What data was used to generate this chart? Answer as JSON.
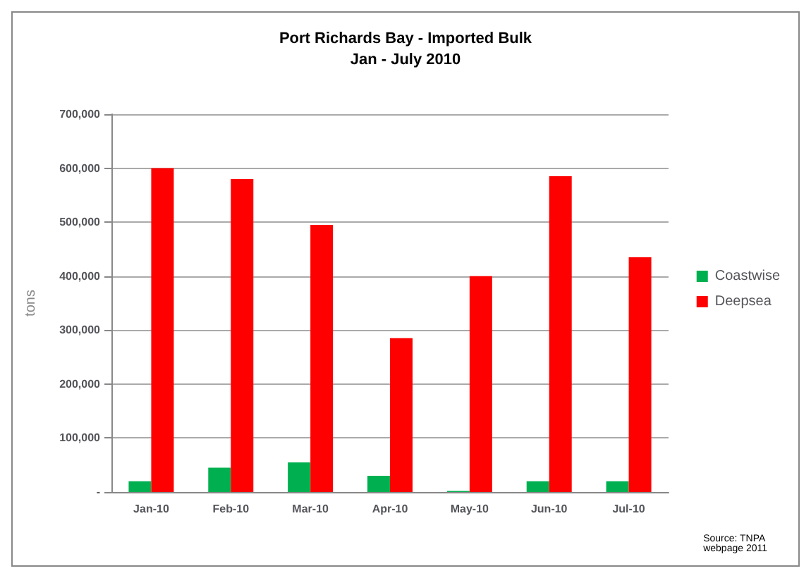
{
  "chart_data": {
    "type": "bar",
    "title": "Port Richards Bay - Imported Bulk",
    "subtitle": "Jan - July 2010",
    "ylabel": "tons",
    "categories": [
      "Jan-10",
      "Feb-10",
      "Mar-10",
      "Apr-10",
      "May-10",
      "Jun-10",
      "Jul-10"
    ],
    "series": [
      {
        "name": "Coastwise",
        "color": "#00b050",
        "values": [
          20000,
          45000,
          55000,
          30000,
          2000,
          20000,
          20000
        ]
      },
      {
        "name": "Deepsea",
        "color": "#ff0000",
        "values": [
          600000,
          580000,
          495000,
          285000,
          400000,
          585000,
          435000
        ]
      }
    ],
    "ylim": [
      0,
      700000
    ],
    "yticks": [
      {
        "value": 0,
        "label": "-"
      },
      {
        "value": 100000,
        "label": "100,000"
      },
      {
        "value": 200000,
        "label": "200,000"
      },
      {
        "value": 300000,
        "label": "300,000"
      },
      {
        "value": 400000,
        "label": "400,000"
      },
      {
        "value": 500000,
        "label": "500,000"
      },
      {
        "value": 600000,
        "label": "600,000"
      },
      {
        "value": 700000,
        "label": "700,000"
      }
    ],
    "grid": "y",
    "legend": "right",
    "annotations": [
      "Source: TNPA\nwebpage 2011"
    ]
  }
}
